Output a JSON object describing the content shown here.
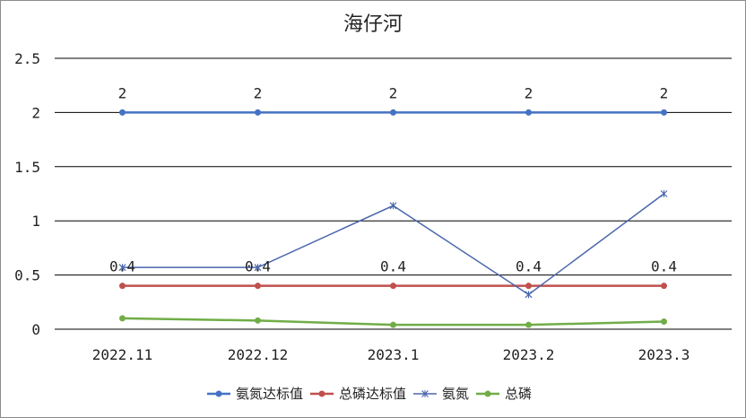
{
  "chart_data": {
    "type": "line",
    "title": "海仔河",
    "xlabel": "",
    "ylabel": "",
    "categories": [
      "2022.11",
      "2022.12",
      "2023.1",
      "2023.2",
      "2023.3"
    ],
    "ylim": [
      0,
      2.5
    ],
    "yticks": [
      "0",
      "0.5",
      "1",
      "1.5",
      "2",
      "2.5"
    ],
    "grid": true,
    "legend_position": "bottom",
    "series": [
      {
        "name": "氨氮达标值",
        "values": [
          2,
          2,
          2,
          2,
          2
        ],
        "color": "#4472c4",
        "marker": "circle",
        "show_labels": true,
        "data_labels": [
          "2",
          "2",
          "2",
          "2",
          "2"
        ]
      },
      {
        "name": "总磷达标值",
        "values": [
          0.4,
          0.4,
          0.4,
          0.4,
          0.4
        ],
        "color": "#c0504d",
        "marker": "circle",
        "show_labels": true,
        "data_labels": [
          "0.4",
          "0.4",
          "0.4",
          "0.4",
          "0.4"
        ]
      },
      {
        "name": "氨氮",
        "values": [
          0.57,
          0.57,
          1.14,
          0.32,
          1.25
        ],
        "color": "#4a66ac",
        "marker": "x",
        "show_labels": false
      },
      {
        "name": "总磷",
        "values": [
          0.1,
          0.08,
          0.04,
          0.04,
          0.07
        ],
        "color": "#70ad47",
        "marker": "circle",
        "show_labels": false
      }
    ]
  }
}
